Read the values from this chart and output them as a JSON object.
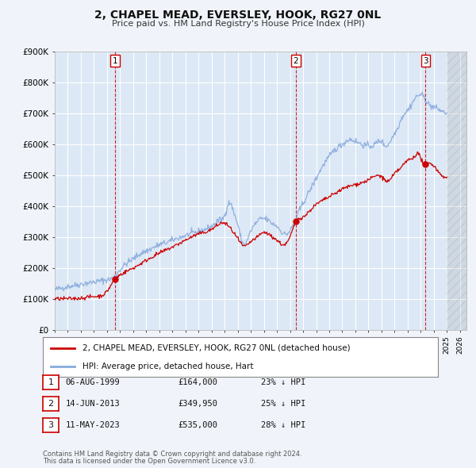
{
  "title": "2, CHAPEL MEAD, EVERSLEY, HOOK, RG27 0NL",
  "subtitle": "Price paid vs. HM Land Registry's House Price Index (HPI)",
  "background_color": "#f0f4fa",
  "plot_bg_color": "#dce8f5",
  "grid_color": "#ffffff",
  "ylim": [
    0,
    900000
  ],
  "xlim_start": 1995.0,
  "xlim_end": 2026.5,
  "yticks": [
    0,
    100000,
    200000,
    300000,
    400000,
    500000,
    600000,
    700000,
    800000,
    900000
  ],
  "ytick_labels": [
    "£0",
    "£100K",
    "£200K",
    "£300K",
    "£400K",
    "£500K",
    "£600K",
    "£700K",
    "£800K",
    "£900K"
  ],
  "xtick_years": [
    1995,
    1996,
    1997,
    1998,
    1999,
    2000,
    2001,
    2002,
    2003,
    2004,
    2005,
    2006,
    2007,
    2008,
    2009,
    2010,
    2011,
    2012,
    2013,
    2014,
    2015,
    2016,
    2017,
    2018,
    2019,
    2020,
    2021,
    2022,
    2023,
    2024,
    2025,
    2026
  ],
  "sale_color": "#cc0000",
  "hpi_color": "#88aadd",
  "vline_color": "#cc0000",
  "transactions": [
    {
      "num": 1,
      "date_label": "06-AUG-1999",
      "year": 1999.6,
      "price": 164000,
      "pct": "23%",
      "direction": "↓"
    },
    {
      "num": 2,
      "date_label": "14-JUN-2013",
      "year": 2013.45,
      "price": 349950,
      "pct": "25%",
      "direction": "↓"
    },
    {
      "num": 3,
      "date_label": "11-MAY-2023",
      "year": 2023.37,
      "price": 535000,
      "pct": "28%",
      "direction": "↓"
    }
  ],
  "legend_label_sale": "2, CHAPEL MEAD, EVERSLEY, HOOK, RG27 0NL (detached house)",
  "legend_label_hpi": "HPI: Average price, detached house, Hart",
  "footer_line1": "Contains HM Land Registry data © Crown copyright and database right 2024.",
  "footer_line2": "This data is licensed under the Open Government Licence v3.0.",
  "hpi_anchors": [
    [
      1995.0,
      130000
    ],
    [
      1996.0,
      140000
    ],
    [
      1997.0,
      148000
    ],
    [
      1998.0,
      155000
    ],
    [
      1999.0,
      162000
    ],
    [
      1999.5,
      170000
    ],
    [
      2000.0,
      195000
    ],
    [
      2000.5,
      215000
    ],
    [
      2001.0,
      230000
    ],
    [
      2001.5,
      245000
    ],
    [
      2002.0,
      255000
    ],
    [
      2002.5,
      265000
    ],
    [
      2003.0,
      275000
    ],
    [
      2003.5,
      282000
    ],
    [
      2004.0,
      290000
    ],
    [
      2004.5,
      298000
    ],
    [
      2005.0,
      305000
    ],
    [
      2005.5,
      312000
    ],
    [
      2006.0,
      318000
    ],
    [
      2006.5,
      325000
    ],
    [
      2007.0,
      335000
    ],
    [
      2007.3,
      345000
    ],
    [
      2007.6,
      355000
    ],
    [
      2008.0,
      370000
    ],
    [
      2008.3,
      410000
    ],
    [
      2008.7,
      380000
    ],
    [
      2009.0,
      340000
    ],
    [
      2009.3,
      290000
    ],
    [
      2009.6,
      280000
    ],
    [
      2010.0,
      320000
    ],
    [
      2010.3,
      340000
    ],
    [
      2010.6,
      355000
    ],
    [
      2011.0,
      360000
    ],
    [
      2011.3,
      355000
    ],
    [
      2011.6,
      345000
    ],
    [
      2012.0,
      335000
    ],
    [
      2012.3,
      320000
    ],
    [
      2012.6,
      310000
    ],
    [
      2013.0,
      320000
    ],
    [
      2013.3,
      345000
    ],
    [
      2013.6,
      375000
    ],
    [
      2014.0,
      410000
    ],
    [
      2014.5,
      450000
    ],
    [
      2015.0,
      490000
    ],
    [
      2015.5,
      530000
    ],
    [
      2016.0,
      560000
    ],
    [
      2016.5,
      585000
    ],
    [
      2017.0,
      600000
    ],
    [
      2017.5,
      615000
    ],
    [
      2018.0,
      610000
    ],
    [
      2018.5,
      600000
    ],
    [
      2019.0,
      595000
    ],
    [
      2019.5,
      600000
    ],
    [
      2020.0,
      610000
    ],
    [
      2020.3,
      595000
    ],
    [
      2020.6,
      605000
    ],
    [
      2021.0,
      635000
    ],
    [
      2021.3,
      660000
    ],
    [
      2021.6,
      690000
    ],
    [
      2022.0,
      710000
    ],
    [
      2022.3,
      730000
    ],
    [
      2022.6,
      750000
    ],
    [
      2023.0,
      760000
    ],
    [
      2023.3,
      750000
    ],
    [
      2023.6,
      730000
    ],
    [
      2024.0,
      720000
    ],
    [
      2024.5,
      710000
    ],
    [
      2025.0,
      700000
    ]
  ],
  "sale_anchors": [
    [
      1995.0,
      100000
    ],
    [
      1996.0,
      101000
    ],
    [
      1997.0,
      103000
    ],
    [
      1998.0,
      108000
    ],
    [
      1999.0,
      125000
    ],
    [
      1999.6,
      164000
    ],
    [
      2000.0,
      178000
    ],
    [
      2001.0,
      200000
    ],
    [
      2002.0,
      225000
    ],
    [
      2003.0,
      248000
    ],
    [
      2004.0,
      268000
    ],
    [
      2005.0,
      290000
    ],
    [
      2006.0,
      310000
    ],
    [
      2007.0,
      325000
    ],
    [
      2007.5,
      340000
    ],
    [
      2008.0,
      345000
    ],
    [
      2008.5,
      325000
    ],
    [
      2009.0,
      295000
    ],
    [
      2009.5,
      270000
    ],
    [
      2010.0,
      285000
    ],
    [
      2010.5,
      300000
    ],
    [
      2011.0,
      315000
    ],
    [
      2011.5,
      305000
    ],
    [
      2012.0,
      290000
    ],
    [
      2012.5,
      275000
    ],
    [
      2013.0,
      300000
    ],
    [
      2013.45,
      349950
    ],
    [
      2014.0,
      365000
    ],
    [
      2014.5,
      385000
    ],
    [
      2015.0,
      405000
    ],
    [
      2016.0,
      430000
    ],
    [
      2017.0,
      455000
    ],
    [
      2018.0,
      470000
    ],
    [
      2019.0,
      485000
    ],
    [
      2020.0,
      495000
    ],
    [
      2020.5,
      480000
    ],
    [
      2021.0,
      505000
    ],
    [
      2021.5,
      525000
    ],
    [
      2022.0,
      548000
    ],
    [
      2022.5,
      560000
    ],
    [
      2022.8,
      570000
    ],
    [
      2023.0,
      555000
    ],
    [
      2023.37,
      535000
    ],
    [
      2023.7,
      540000
    ],
    [
      2024.0,
      530000
    ],
    [
      2024.5,
      505000
    ],
    [
      2025.0,
      490000
    ]
  ]
}
